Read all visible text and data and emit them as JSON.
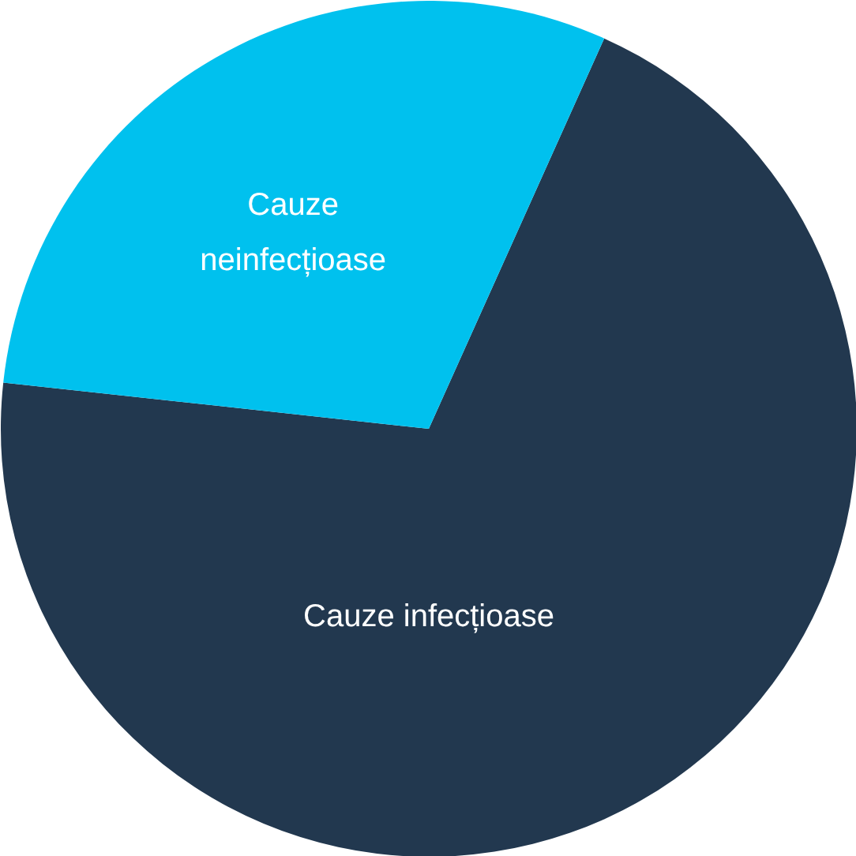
{
  "chart_data": {
    "type": "pie",
    "categories": [
      "Cauze infecțioase",
      "Cauze neinfecțioase"
    ],
    "values": [
      70,
      30
    ],
    "colors": [
      "#22384f",
      "#00c1ee"
    ]
  }
}
